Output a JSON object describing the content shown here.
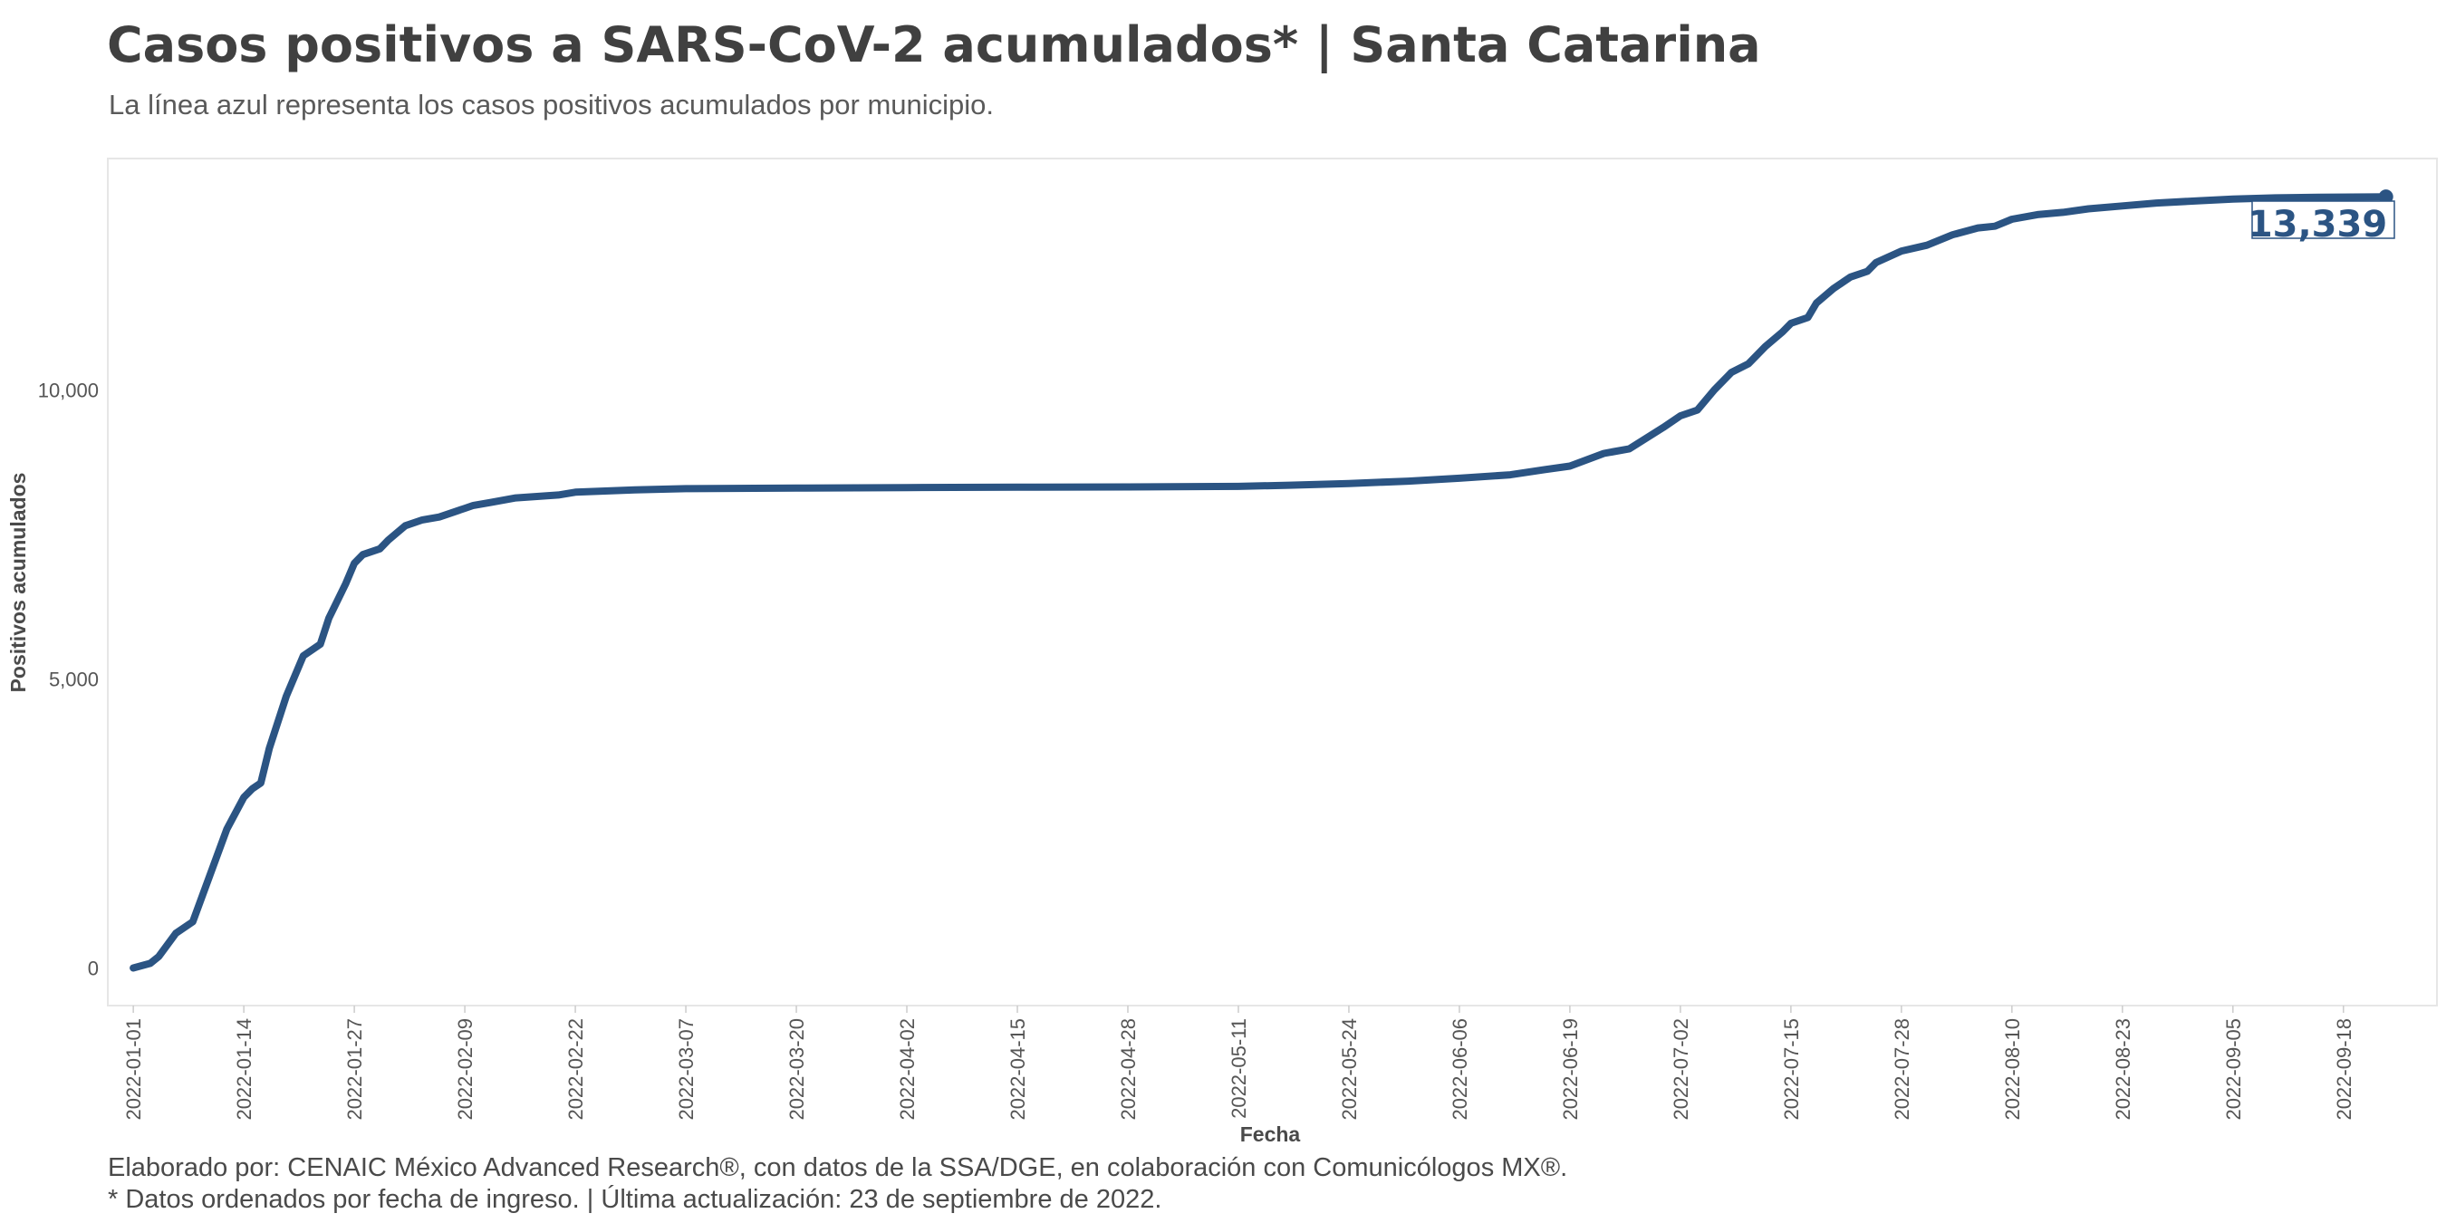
{
  "chart_data": {
    "type": "line",
    "title": "Casos positivos a SARS-CoV-2 acumulados* | Santa Catarina",
    "subtitle": "La línea azul representa los casos positivos acumulados por municipio.",
    "xlabel": "Fecha",
    "ylabel": "Positivos acumulados",
    "x_type": "date",
    "xlim": [
      "2021-12-29",
      "2022-09-29"
    ],
    "ylim": [
      -650,
      14000
    ],
    "yticks": [
      0,
      5000,
      10000
    ],
    "ytick_labels": [
      "0",
      "5,000",
      "10,000"
    ],
    "xticks": [
      "2022-01-01",
      "2022-01-14",
      "2022-01-27",
      "2022-02-09",
      "2022-02-22",
      "2022-03-07",
      "2022-03-20",
      "2022-04-02",
      "2022-04-15",
      "2022-04-28",
      "2022-05-11",
      "2022-05-24",
      "2022-06-06",
      "2022-06-19",
      "2022-07-02",
      "2022-07-15",
      "2022-07-28",
      "2022-08-10",
      "2022-08-23",
      "2022-09-05",
      "2022-09-18"
    ],
    "grid": false,
    "line_color": "#2b5483",
    "end_label": "13,339",
    "series": [
      {
        "values": [
          [
            "2022-01-01",
            0
          ],
          [
            "2022-01-03",
            80
          ],
          [
            "2022-01-04",
            200
          ],
          [
            "2022-01-06",
            600
          ],
          [
            "2022-01-08",
            800
          ],
          [
            "2022-01-10",
            1600
          ],
          [
            "2022-01-12",
            2400
          ],
          [
            "2022-01-14",
            2950
          ],
          [
            "2022-01-15",
            3100
          ],
          [
            "2022-01-16",
            3200
          ],
          [
            "2022-01-17",
            3800
          ],
          [
            "2022-01-19",
            4700
          ],
          [
            "2022-01-21",
            5400
          ],
          [
            "2022-01-23",
            5600
          ],
          [
            "2022-01-24",
            6050
          ],
          [
            "2022-01-26",
            6650
          ],
          [
            "2022-01-27",
            7000
          ],
          [
            "2022-01-28",
            7150
          ],
          [
            "2022-01-30",
            7250
          ],
          [
            "2022-01-31",
            7400
          ],
          [
            "2022-02-02",
            7650
          ],
          [
            "2022-02-04",
            7750
          ],
          [
            "2022-02-06",
            7800
          ],
          [
            "2022-02-09",
            7950
          ],
          [
            "2022-02-10",
            8000
          ],
          [
            "2022-02-12",
            8050
          ],
          [
            "2022-02-15",
            8130
          ],
          [
            "2022-02-20",
            8180
          ],
          [
            "2022-02-22",
            8230
          ],
          [
            "2022-03-01",
            8270
          ],
          [
            "2022-03-07",
            8290
          ],
          [
            "2022-03-20",
            8300
          ],
          [
            "2022-04-02",
            8310
          ],
          [
            "2022-04-15",
            8315
          ],
          [
            "2022-04-28",
            8320
          ],
          [
            "2022-05-11",
            8330
          ],
          [
            "2022-05-17",
            8350
          ],
          [
            "2022-05-24",
            8380
          ],
          [
            "2022-05-31",
            8420
          ],
          [
            "2022-06-06",
            8470
          ],
          [
            "2022-06-12",
            8530
          ],
          [
            "2022-06-16",
            8620
          ],
          [
            "2022-06-19",
            8680
          ],
          [
            "2022-06-23",
            8900
          ],
          [
            "2022-06-26",
            8980
          ],
          [
            "2022-06-30",
            9350
          ],
          [
            "2022-07-02",
            9550
          ],
          [
            "2022-07-04",
            9650
          ],
          [
            "2022-07-06",
            10000
          ],
          [
            "2022-07-08",
            10300
          ],
          [
            "2022-07-10",
            10450
          ],
          [
            "2022-07-12",
            10750
          ],
          [
            "2022-07-14",
            11000
          ],
          [
            "2022-07-15",
            11150
          ],
          [
            "2022-07-17",
            11250
          ],
          [
            "2022-07-18",
            11500
          ],
          [
            "2022-07-20",
            11750
          ],
          [
            "2022-07-22",
            11950
          ],
          [
            "2022-07-24",
            12050
          ],
          [
            "2022-07-25",
            12200
          ],
          [
            "2022-07-28",
            12400
          ],
          [
            "2022-07-31",
            12500
          ],
          [
            "2022-08-03",
            12680
          ],
          [
            "2022-08-06",
            12800
          ],
          [
            "2022-08-08",
            12830
          ],
          [
            "2022-08-10",
            12950
          ],
          [
            "2022-08-13",
            13030
          ],
          [
            "2022-08-16",
            13070
          ],
          [
            "2022-08-19",
            13130
          ],
          [
            "2022-08-23",
            13180
          ],
          [
            "2022-08-27",
            13230
          ],
          [
            "2022-09-01",
            13270
          ],
          [
            "2022-09-05",
            13300
          ],
          [
            "2022-09-10",
            13320
          ],
          [
            "2022-09-15",
            13330
          ],
          [
            "2022-09-23",
            13339
          ]
        ]
      }
    ]
  },
  "caption": {
    "line1": "Elaborado por: CENAIC México Advanced Research®, con datos de la SSA/DGE, en colaboración con Comunicólogos MX®.",
    "line2": "* Datos ordenados por fecha de ingreso. | Última actualización: 23 de septiembre de 2022."
  }
}
